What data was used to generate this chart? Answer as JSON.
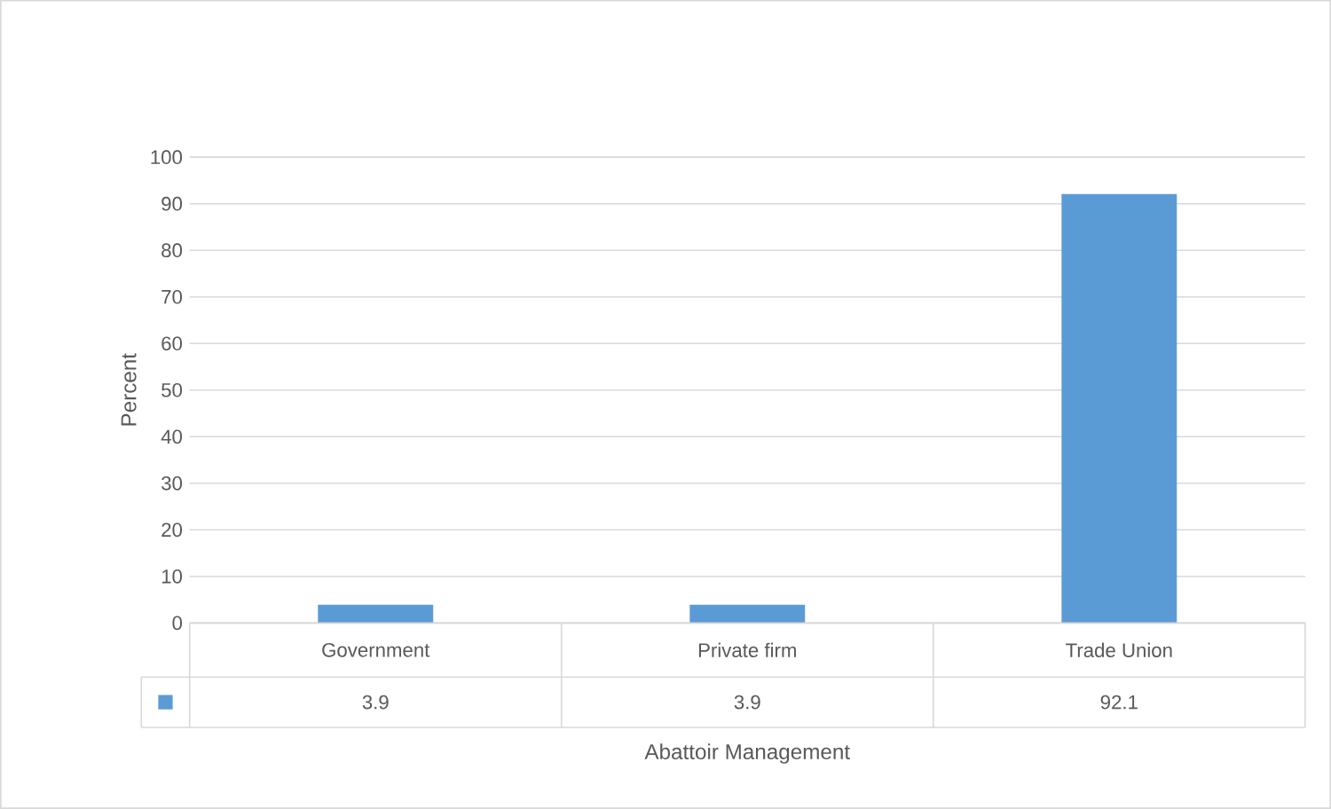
{
  "chart_data": {
    "type": "bar",
    "categories": [
      "Government",
      "Private firm",
      "Trade Union"
    ],
    "values": [
      3.9,
      3.9,
      92.1
    ],
    "color": "#5b9bd5",
    "ylabel": "Percent",
    "xlabel": "Abattoir Management",
    "ylim": [
      0,
      100
    ],
    "yticks": [
      0,
      10,
      20,
      30,
      40,
      50,
      60,
      70,
      80,
      90,
      100
    ],
    "grid": "y",
    "data_labels": true
  }
}
